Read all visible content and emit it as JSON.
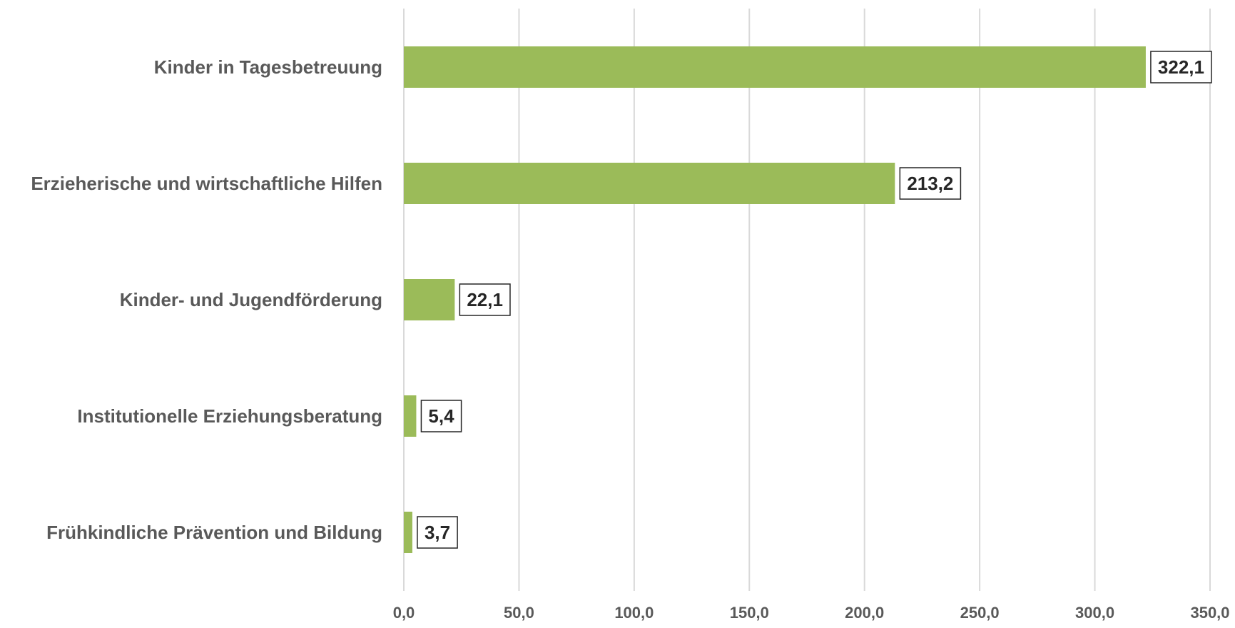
{
  "chart_data": {
    "type": "bar",
    "orientation": "horizontal",
    "categories": [
      "Kinder in Tagesbetreuung",
      "Erzieherische und wirtschaftliche Hilfen",
      "Kinder- und Jugendförderung",
      "Institutionelle Erziehungsberatung",
      "Frühkindliche Prävention und Bildung"
    ],
    "values": [
      322.1,
      213.2,
      22.1,
      5.4,
      3.7
    ],
    "data_labels": [
      "322,1",
      "213,2",
      "22,1",
      "5,4",
      "3,7"
    ],
    "xlim": [
      0,
      350
    ],
    "xticks": [
      0,
      50,
      100,
      150,
      200,
      250,
      300,
      350
    ],
    "xtick_labels": [
      "0,0",
      "50,0",
      "100,0",
      "150,0",
      "200,0",
      "250,0",
      "300,0",
      "350,0"
    ],
    "title": "",
    "xlabel": "",
    "ylabel": "",
    "grid": "vertical",
    "legend": "none",
    "bar_color": "#9bbb59"
  }
}
